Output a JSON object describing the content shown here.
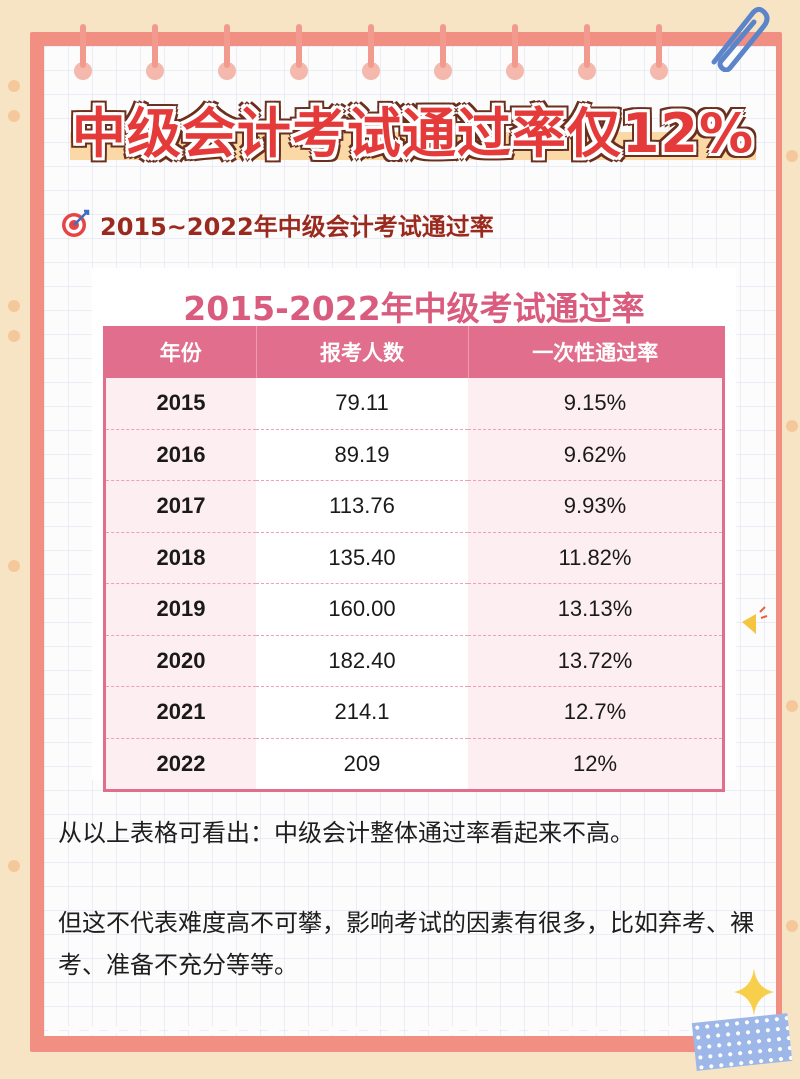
{
  "headline": "中级会计考试通过率仅12%",
  "subtitle": {
    "icon": "target-icon",
    "text": "2015~2022年中级会计考试通过率"
  },
  "table": {
    "title": "2015-2022年中级考试通过率",
    "headers": [
      "年份",
      "报考人数",
      "一次性通过率"
    ],
    "rows": [
      {
        "year": "2015",
        "count": "79.11",
        "rate": "9.15%"
      },
      {
        "year": "2016",
        "count": "89.19",
        "rate": "9.62%"
      },
      {
        "year": "2017",
        "count": "113.76",
        "rate": "9.93%"
      },
      {
        "year": "2018",
        "count": "135.40",
        "rate": "11.82%"
      },
      {
        "year": "2019",
        "count": "160.00",
        "rate": "13.13%"
      },
      {
        "year": "2020",
        "count": "182.40",
        "rate": "13.72%"
      },
      {
        "year": "2021",
        "count": "214.1",
        "rate": "12.7%"
      },
      {
        "year": "2022",
        "count": "209",
        "rate": "12%"
      }
    ]
  },
  "paragraphs": [
    "从以上表格可看出：中级会计整体通过率看起来不高。",
    "但这不代表难度高不可攀，影响考试的因素有很多，比如弃考、裸考、准备不充分等等。"
  ],
  "colors": {
    "headline_red": "#e43a3a",
    "table_pink": "#e16e8c",
    "subtitle_brown": "#9b2a1e"
  }
}
